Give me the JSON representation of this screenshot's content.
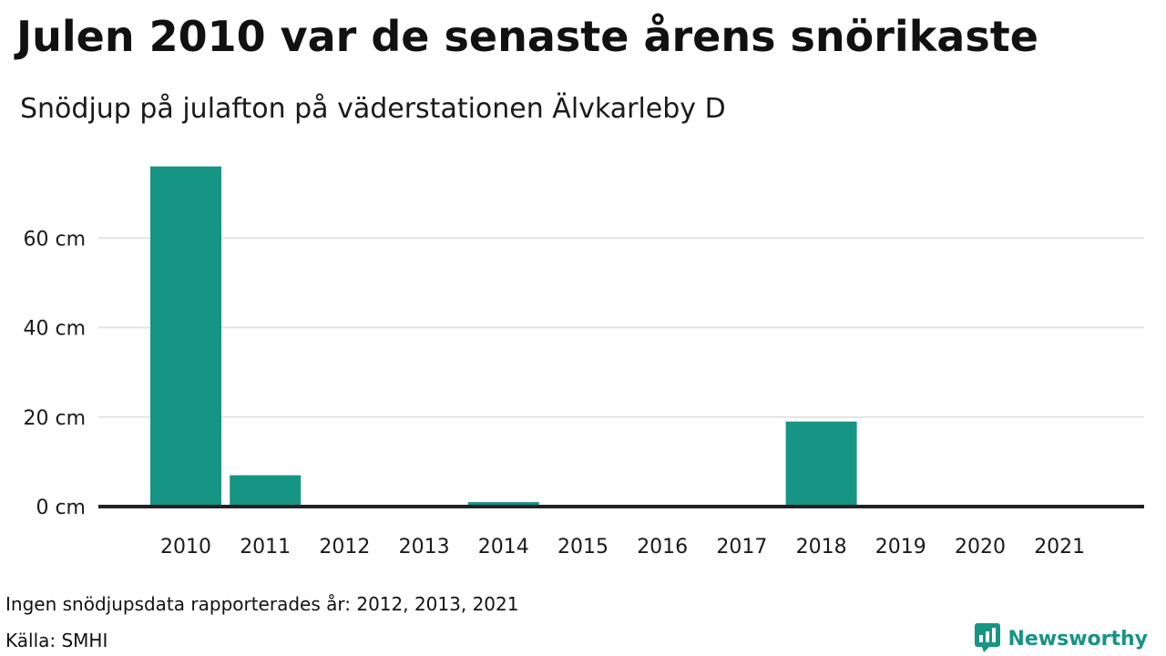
{
  "chart_data": {
    "type": "bar",
    "title": "Julen 2010 var de senaste årens snörikaste",
    "subtitle": "Snödjup på julafton på väderstationen Älvkarleby D",
    "categories": [
      "2010",
      "2011",
      "2012",
      "2013",
      "2014",
      "2015",
      "2016",
      "2017",
      "2018",
      "2019",
      "2020",
      "2021"
    ],
    "values": [
      76,
      7,
      null,
      null,
      1,
      0,
      0,
      0,
      19,
      0,
      0,
      null
    ],
    "ylim": [
      0,
      80
    ],
    "yticks": [
      0,
      20,
      40,
      60
    ],
    "ytick_labels": [
      "0 cm",
      "20 cm",
      "40 cm",
      "60 cm"
    ],
    "grid": true,
    "bar_color": "#169484"
  },
  "footer": {
    "note": "Ingen snödjupsdata rapporterades år: 2012, 2013, 2021",
    "source": "Källa: SMHI"
  },
  "brand": {
    "name": "Newsworthy",
    "icon": "newsworthy-logo-icon",
    "color": "#169484"
  }
}
